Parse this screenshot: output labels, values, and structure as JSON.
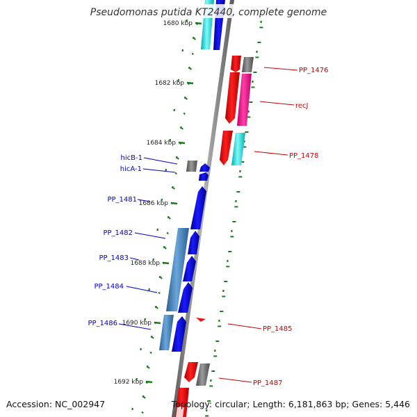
{
  "title": "Pseudomonas putida KT2440, complete genome",
  "footer": {
    "accession": "Accession: NC_002947",
    "summary": "Topology: circular; Length: 6,181,863 bp; Genes: 5,446"
  },
  "colors": {
    "forward_gene": "#1010e0",
    "reverse_gene": "#ee1111",
    "plus_cyan": "#00e5e5",
    "plus_magenta": "#ee1190",
    "steel_blue": "#4a86c0",
    "gray_gene": "#6e6e6e",
    "tick_green": "#1b7a1b",
    "backbone": "#8c8c8c",
    "left_label": "#0000cc",
    "right_label": "#cc0000"
  },
  "kbp_marks": [
    {
      "label": "1680 kbp"
    },
    {
      "label": "1682 kbp"
    },
    {
      "label": "1684 kbp"
    },
    {
      "label": "1686 kbp"
    },
    {
      "label": "1688 kbp"
    },
    {
      "label": "1690 kbp"
    },
    {
      "label": "1692 kbp"
    }
  ],
  "gene_labels": {
    "left": [
      {
        "text": "hicB-1"
      },
      {
        "text": "hicA-1"
      },
      {
        "text": "PP_1481"
      },
      {
        "text": "PP_1482"
      },
      {
        "text": "PP_1483"
      },
      {
        "text": "PP_1484"
      },
      {
        "text": "PP_1486"
      }
    ],
    "right": [
      {
        "text": "PP_1476"
      },
      {
        "text": "recJ"
      },
      {
        "text": "PP_1478"
      },
      {
        "text": "PP_1485"
      },
      {
        "text": "PP_1487"
      }
    ]
  }
}
